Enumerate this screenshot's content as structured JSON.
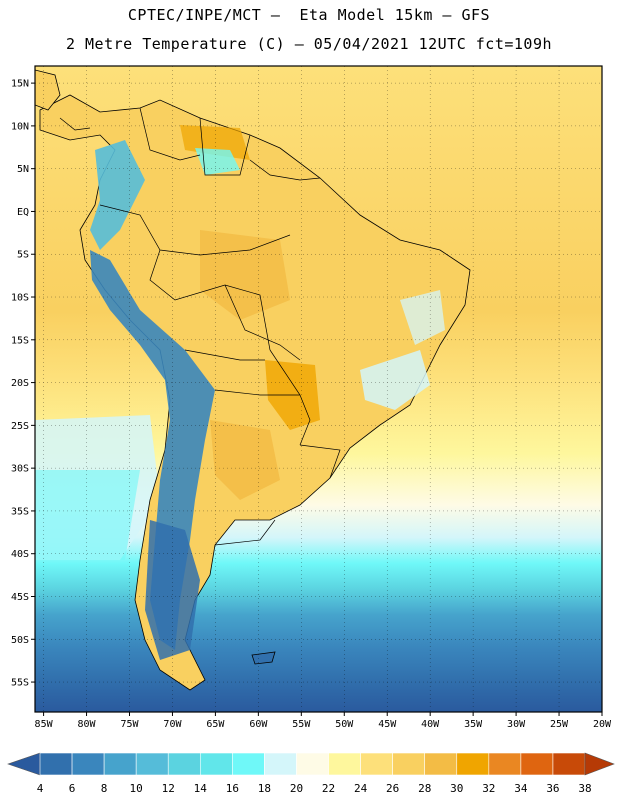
{
  "header": {
    "title_line_1": "CPTEC/INPE/MCT —  Eta Model 15km — GFS",
    "title_line_2": "2 Metre Temperature (C) — 05/04/2021 12UTC fct=109h"
  },
  "map": {
    "lon_range": [
      -86,
      -20
    ],
    "lat_range": [
      -58.5,
      17
    ],
    "lat_ticks": [
      {
        "value": 15,
        "label": "15N"
      },
      {
        "value": 10,
        "label": "10N"
      },
      {
        "value": 5,
        "label": "5N"
      },
      {
        "value": 0,
        "label": "EQ"
      },
      {
        "value": -5,
        "label": "5S"
      },
      {
        "value": -10,
        "label": "10S"
      },
      {
        "value": -15,
        "label": "15S"
      },
      {
        "value": -20,
        "label": "20S"
      },
      {
        "value": -25,
        "label": "25S"
      },
      {
        "value": -30,
        "label": "30S"
      },
      {
        "value": -35,
        "label": "35S"
      },
      {
        "value": -40,
        "label": "40S"
      },
      {
        "value": -45,
        "label": "45S"
      },
      {
        "value": -50,
        "label": "50S"
      },
      {
        "value": -55,
        "label": "55S"
      }
    ],
    "lon_ticks": [
      {
        "value": -85,
        "label": "85W"
      },
      {
        "value": -80,
        "label": "80W"
      },
      {
        "value": -75,
        "label": "75W"
      },
      {
        "value": -70,
        "label": "70W"
      },
      {
        "value": -65,
        "label": "65W"
      },
      {
        "value": -60,
        "label": "60W"
      },
      {
        "value": -55,
        "label": "55W"
      },
      {
        "value": -50,
        "label": "50W"
      },
      {
        "value": -45,
        "label": "45W"
      },
      {
        "value": -40,
        "label": "40W"
      },
      {
        "value": -35,
        "label": "35W"
      },
      {
        "value": -30,
        "label": "30W"
      },
      {
        "value": -25,
        "label": "25W"
      },
      {
        "value": -20,
        "label": "20W"
      }
    ]
  },
  "colorbar": {
    "unit": "C",
    "colors": [
      "#2a5a9e",
      "#3170ad",
      "#3a86bd",
      "#46a3cc",
      "#55bcd9",
      "#5bd3e0",
      "#61e6ea",
      "#6ff8f8",
      "#d4f6fa",
      "#fefbe6",
      "#fef79d",
      "#fde07a",
      "#f9d060",
      "#f3bc45",
      "#f0a500",
      "#ea8722",
      "#df6510",
      "#c84a08",
      "#b63a06"
    ],
    "labels": [
      "4",
      "6",
      "8",
      "10",
      "12",
      "14",
      "16",
      "18",
      "20",
      "22",
      "24",
      "26",
      "28",
      "30",
      "32",
      "34",
      "36",
      "38"
    ]
  }
}
